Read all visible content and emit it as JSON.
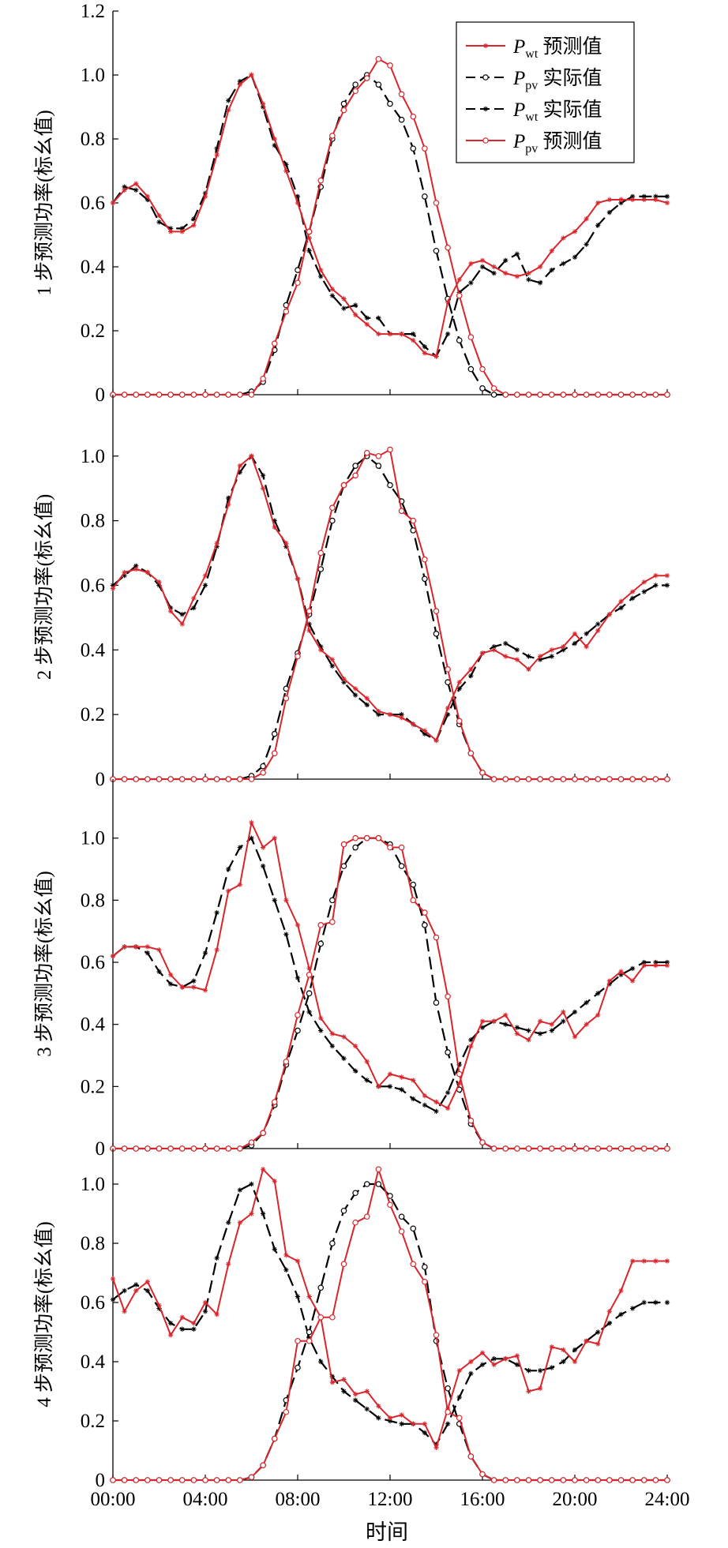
{
  "chart_data": {
    "type": "line",
    "xlabel": "时间",
    "x_ticks": [
      "00:00",
      "04:00",
      "08:00",
      "12:00",
      "16:00",
      "20:00",
      "24:00"
    ],
    "x_range_hours": [
      0,
      24
    ],
    "step_hours": 0.5,
    "colors": {
      "forecast": "#d9262c",
      "actual": "#000000"
    },
    "legend": {
      "placement": "top-right of panel 1",
      "entries": [
        {
          "main": "P",
          "sub": "wt",
          "text": "预测值",
          "style": "red-star"
        },
        {
          "main": "P",
          "sub": "pv",
          "text": "实际值",
          "style": "black-dash-circle"
        },
        {
          "main": "P",
          "sub": "wt",
          "text": "实际值",
          "style": "black-dash-star"
        },
        {
          "main": "P",
          "sub": "pv",
          "text": "预测值",
          "style": "red-circle"
        }
      ]
    },
    "panels": [
      {
        "ylabel": "1 步预测功率(标幺值)",
        "y_ticks": [
          "0",
          "0.2",
          "0.4",
          "0.6",
          "0.8",
          "1.0",
          "1.2"
        ],
        "ylim": [
          0,
          1.2
        ],
        "series": [
          {
            "key": "pwt_actual",
            "values": [
              0.6,
              0.65,
              0.64,
              0.61,
              0.54,
              0.52,
              0.52,
              0.55,
              0.63,
              0.77,
              0.92,
              0.98,
              1.0,
              0.9,
              0.78,
              0.72,
              0.62,
              0.45,
              0.37,
              0.31,
              0.27,
              0.28,
              0.24,
              0.24,
              0.19,
              0.19,
              0.19,
              0.15,
              0.12,
              0.19,
              0.32,
              0.35,
              0.4,
              0.38,
              0.42,
              0.44,
              0.36,
              0.35,
              0.39,
              0.41,
              0.43,
              0.47,
              0.53,
              0.57,
              0.6,
              0.62,
              0.62,
              0.62,
              0.62
            ]
          },
          {
            "key": "pwt_forecast",
            "values": [
              0.6,
              0.64,
              0.66,
              0.62,
              0.56,
              0.51,
              0.51,
              0.53,
              0.62,
              0.75,
              0.89,
              0.97,
              1.0,
              0.91,
              0.8,
              0.7,
              0.6,
              0.49,
              0.39,
              0.33,
              0.3,
              0.25,
              0.22,
              0.19,
              0.19,
              0.19,
              0.17,
              0.13,
              0.12,
              0.29,
              0.36,
              0.41,
              0.42,
              0.4,
              0.38,
              0.37,
              0.38,
              0.4,
              0.45,
              0.49,
              0.51,
              0.55,
              0.6,
              0.61,
              0.61,
              0.61,
              0.61,
              0.61,
              0.6
            ]
          },
          {
            "key": "ppv_actual",
            "values": [
              0,
              0,
              0,
              0,
              0,
              0,
              0,
              0,
              0,
              0,
              0,
              0,
              0.01,
              0.04,
              0.14,
              0.28,
              0.39,
              0.51,
              0.65,
              0.8,
              0.91,
              0.97,
              1.0,
              0.97,
              0.91,
              0.86,
              0.77,
              0.62,
              0.45,
              0.3,
              0.17,
              0.08,
              0.02,
              0,
              0,
              0,
              0,
              0,
              0,
              0,
              0,
              0,
              0,
              0,
              0,
              0,
              0,
              0,
              0
            ]
          },
          {
            "key": "ppv_forecast",
            "values": [
              0,
              0,
              0,
              0,
              0,
              0,
              0,
              0,
              0,
              0,
              0,
              0,
              0,
              0.05,
              0.16,
              0.26,
              0.35,
              0.51,
              0.67,
              0.81,
              0.89,
              0.95,
              0.99,
              1.05,
              1.03,
              0.94,
              0.87,
              0.77,
              0.6,
              0.46,
              0.31,
              0.18,
              0.08,
              0.02,
              0,
              0,
              0,
              0,
              0,
              0,
              0,
              0,
              0,
              0,
              0,
              0,
              0,
              0,
              0
            ]
          }
        ]
      },
      {
        "ylabel": "2 步预测功率(标幺值)",
        "y_ticks": [
          "0",
          "0.2",
          "0.4",
          "0.6",
          "0.8",
          "1.0"
        ],
        "ylim": [
          0,
          1.2
        ],
        "series": [
          {
            "key": "pwt_actual",
            "values": [
              0.6,
              0.63,
              0.66,
              0.64,
              0.6,
              0.53,
              0.51,
              0.53,
              0.6,
              0.72,
              0.87,
              0.95,
              1.0,
              0.94,
              0.8,
              0.72,
              0.62,
              0.48,
              0.41,
              0.35,
              0.3,
              0.26,
              0.23,
              0.2,
              0.2,
              0.2,
              0.17,
              0.14,
              0.12,
              0.2,
              0.28,
              0.32,
              0.39,
              0.41,
              0.42,
              0.4,
              0.38,
              0.37,
              0.38,
              0.4,
              0.42,
              0.45,
              0.48,
              0.51,
              0.53,
              0.56,
              0.58,
              0.6,
              0.6
            ]
          },
          {
            "key": "pwt_forecast",
            "values": [
              0.59,
              0.64,
              0.65,
              0.64,
              0.61,
              0.52,
              0.48,
              0.56,
              0.63,
              0.73,
              0.85,
              0.97,
              1.0,
              0.9,
              0.78,
              0.73,
              0.62,
              0.46,
              0.4,
              0.37,
              0.31,
              0.28,
              0.25,
              0.21,
              0.2,
              0.19,
              0.17,
              0.15,
              0.12,
              0.22,
              0.3,
              0.34,
              0.39,
              0.4,
              0.38,
              0.37,
              0.34,
              0.38,
              0.4,
              0.41,
              0.45,
              0.41,
              0.46,
              0.51,
              0.55,
              0.58,
              0.61,
              0.63,
              0.63
            ]
          },
          {
            "key": "ppv_actual",
            "values": [
              0,
              0,
              0,
              0,
              0,
              0,
              0,
              0,
              0,
              0,
              0,
              0,
              0.01,
              0.04,
              0.14,
              0.28,
              0.39,
              0.51,
              0.65,
              0.8,
              0.91,
              0.97,
              1.0,
              0.97,
              0.91,
              0.86,
              0.77,
              0.62,
              0.45,
              0.3,
              0.17,
              0.08,
              0.02,
              0,
              0,
              0,
              0,
              0,
              0,
              0,
              0,
              0,
              0,
              0,
              0,
              0,
              0,
              0,
              0
            ]
          },
          {
            "key": "ppv_forecast",
            "values": [
              0,
              0,
              0,
              0,
              0,
              0,
              0,
              0,
              0,
              0,
              0,
              0,
              0,
              0.02,
              0.08,
              0.25,
              0.38,
              0.52,
              0.7,
              0.84,
              0.91,
              0.94,
              1.01,
              1.0,
              1.02,
              0.83,
              0.8,
              0.68,
              0.52,
              0.34,
              0.18,
              0.08,
              0.02,
              0,
              0,
              0,
              0,
              0,
              0,
              0,
              0,
              0,
              0,
              0,
              0,
              0,
              0,
              0,
              0
            ]
          }
        ]
      },
      {
        "ylabel": "3 步预测功率(标幺值)",
        "y_ticks": [
          "0",
          "0.2",
          "0.4",
          "0.6",
          "0.8",
          "1.0"
        ],
        "ylim": [
          0,
          1.2
        ],
        "series": [
          {
            "key": "pwt_actual",
            "values": [
              0.62,
              0.65,
              0.65,
              0.63,
              0.57,
              0.53,
              0.52,
              0.54,
              0.63,
              0.76,
              0.9,
              0.97,
              1.0,
              0.91,
              0.8,
              0.69,
              0.55,
              0.44,
              0.38,
              0.33,
              0.29,
              0.25,
              0.22,
              0.2,
              0.2,
              0.19,
              0.16,
              0.14,
              0.12,
              0.18,
              0.27,
              0.35,
              0.39,
              0.41,
              0.4,
              0.39,
              0.38,
              0.37,
              0.38,
              0.41,
              0.44,
              0.47,
              0.5,
              0.53,
              0.56,
              0.58,
              0.6,
              0.6,
              0.6
            ]
          },
          {
            "key": "pwt_forecast",
            "values": [
              0.62,
              0.65,
              0.65,
              0.65,
              0.64,
              0.56,
              0.52,
              0.52,
              0.51,
              0.64,
              0.83,
              0.85,
              1.05,
              0.97,
              1.0,
              0.8,
              0.72,
              0.58,
              0.42,
              0.37,
              0.36,
              0.33,
              0.28,
              0.2,
              0.24,
              0.23,
              0.22,
              0.17,
              0.15,
              0.13,
              0.21,
              0.33,
              0.41,
              0.41,
              0.43,
              0.37,
              0.35,
              0.41,
              0.4,
              0.44,
              0.36,
              0.4,
              0.43,
              0.54,
              0.57,
              0.54,
              0.59,
              0.59,
              0.59
            ]
          },
          {
            "key": "ppv_actual",
            "values": [
              0,
              0,
              0,
              0,
              0,
              0,
              0,
              0,
              0,
              0,
              0,
              0,
              0.01,
              0.05,
              0.14,
              0.27,
              0.38,
              0.5,
              0.66,
              0.8,
              0.91,
              0.97,
              1.0,
              1.0,
              0.98,
              0.91,
              0.85,
              0.72,
              0.47,
              0.31,
              0.19,
              0.08,
              0.02,
              0,
              0,
              0,
              0,
              0,
              0,
              0,
              0,
              0,
              0,
              0,
              0,
              0,
              0,
              0,
              0
            ]
          },
          {
            "key": "ppv_forecast",
            "values": [
              0,
              0,
              0,
              0,
              0,
              0,
              0,
              0,
              0,
              0,
              0,
              0,
              0.02,
              0.05,
              0.15,
              0.28,
              0.43,
              0.56,
              0.72,
              0.73,
              0.98,
              1.0,
              1.0,
              1.0,
              0.97,
              0.97,
              0.8,
              0.76,
              0.68,
              0.49,
              0.24,
              0.09,
              0.02,
              0,
              0,
              0,
              0,
              0,
              0,
              0,
              0,
              0,
              0,
              0,
              0,
              0,
              0,
              0,
              0
            ]
          }
        ]
      },
      {
        "ylabel": "4 步预测功率(标幺值)",
        "y_ticks": [
          "0",
          "0.2",
          "0.4",
          "0.6",
          "0.8",
          "1.0"
        ],
        "ylim": [
          0,
          1.2
        ],
        "series": [
          {
            "key": "pwt_actual",
            "values": [
              0.61,
              0.64,
              0.66,
              0.64,
              0.58,
              0.53,
              0.51,
              0.51,
              0.57,
              0.75,
              0.87,
              0.98,
              1.0,
              0.9,
              0.78,
              0.71,
              0.62,
              0.48,
              0.4,
              0.35,
              0.3,
              0.27,
              0.24,
              0.21,
              0.2,
              0.19,
              0.19,
              0.16,
              0.12,
              0.19,
              0.28,
              0.36,
              0.39,
              0.41,
              0.41,
              0.39,
              0.37,
              0.37,
              0.38,
              0.4,
              0.44,
              0.47,
              0.5,
              0.53,
              0.56,
              0.58,
              0.6,
              0.6,
              0.6
            ]
          },
          {
            "key": "pwt_forecast",
            "values": [
              0.68,
              0.57,
              0.64,
              0.67,
              0.59,
              0.49,
              0.55,
              0.53,
              0.6,
              0.56,
              0.73,
              0.87,
              0.9,
              1.05,
              1.01,
              0.76,
              0.74,
              0.62,
              0.55,
              0.33,
              0.34,
              0.29,
              0.3,
              0.25,
              0.21,
              0.22,
              0.19,
              0.19,
              0.11,
              0.24,
              0.37,
              0.4,
              0.43,
              0.39,
              0.41,
              0.42,
              0.3,
              0.31,
              0.45,
              0.44,
              0.4,
              0.47,
              0.46,
              0.57,
              0.64,
              0.74,
              0.74,
              0.74,
              0.74
            ]
          },
          {
            "key": "ppv_actual",
            "values": [
              0,
              0,
              0,
              0,
              0,
              0,
              0,
              0,
              0,
              0,
              0,
              0,
              0.01,
              0.05,
              0.14,
              0.27,
              0.38,
              0.5,
              0.65,
              0.8,
              0.91,
              0.97,
              1.0,
              1.0,
              0.96,
              0.89,
              0.85,
              0.72,
              0.47,
              0.31,
              0.19,
              0.08,
              0.02,
              0,
              0,
              0,
              0,
              0,
              0,
              0,
              0,
              0,
              0,
              0,
              0,
              0,
              0,
              0,
              0
            ]
          },
          {
            "key": "ppv_forecast",
            "values": [
              0,
              0,
              0,
              0,
              0,
              0,
              0,
              0,
              0,
              0,
              0,
              0,
              0.01,
              0.05,
              0.14,
              0.23,
              0.47,
              0.47,
              0.55,
              0.55,
              0.73,
              0.87,
              0.89,
              1.05,
              0.93,
              0.84,
              0.73,
              0.67,
              0.49,
              0.23,
              0.21,
              0.08,
              0.02,
              0,
              0,
              0,
              0,
              0,
              0,
              0,
              0,
              0,
              0,
              0,
              0,
              0,
              0,
              0,
              0
            ]
          }
        ]
      }
    ]
  }
}
